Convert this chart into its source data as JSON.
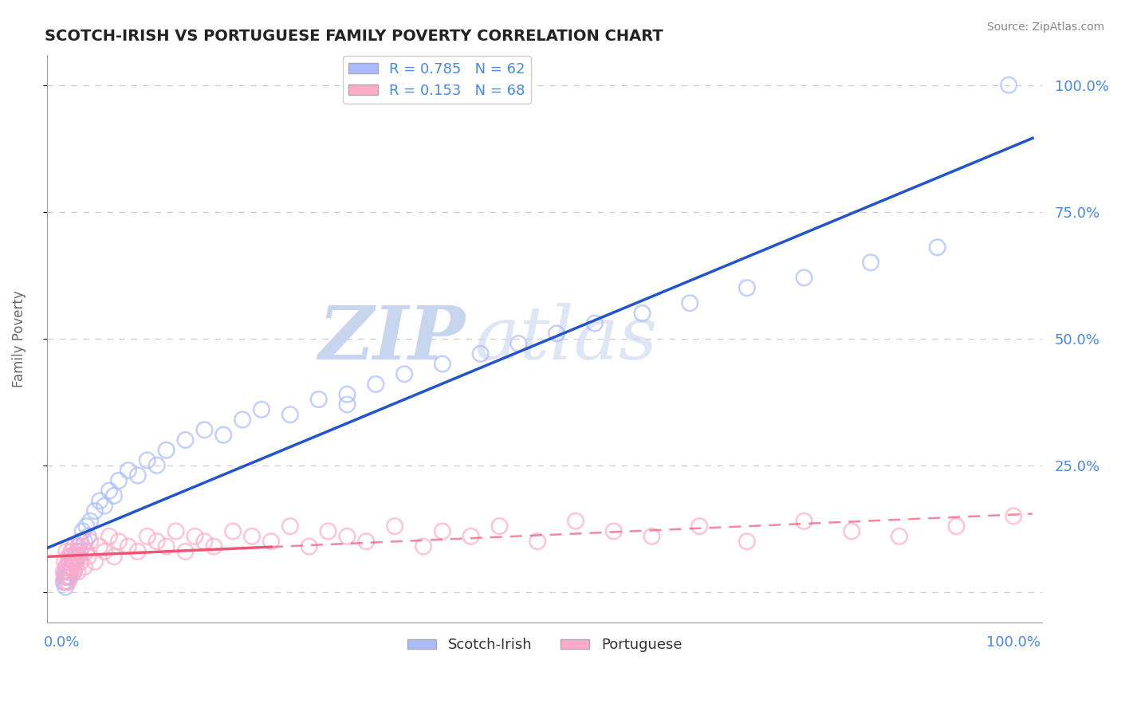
{
  "title": "SCOTCH-IRISH VS PORTUGUESE FAMILY POVERTY CORRELATION CHART",
  "source_text": "Source: ZipAtlas.com",
  "ylabel": "Family Poverty",
  "xlim": [
    -1.5,
    103.0
  ],
  "ylim": [
    -6.0,
    106.0
  ],
  "ytick_positions": [
    0,
    25,
    50,
    75,
    100
  ],
  "ytick_right_labels": [
    "",
    "25.0%",
    "50.0%",
    "75.0%",
    "100.0%"
  ],
  "xtick_positions": [
    0,
    100
  ],
  "xtick_labels": [
    "0.0%",
    "100.0%"
  ],
  "grid_color": "#cccccc",
  "watermark_text": "ZIPatlas",
  "watermark_color": "#ccd8f0",
  "scotch_irish": {
    "R": 0.785,
    "N": 62,
    "color": "#aabbff",
    "edge_color": "#7799ee",
    "line_color": "#2255cc",
    "label": "Scotch-Irish",
    "x": [
      0.2,
      0.3,
      0.4,
      0.4,
      0.5,
      0.5,
      0.6,
      0.7,
      0.8,
      0.8,
      0.9,
      1.0,
      1.0,
      1.1,
      1.2,
      1.3,
      1.4,
      1.5,
      1.6,
      1.7,
      1.8,
      1.9,
      2.0,
      2.2,
      2.4,
      2.6,
      2.8,
      3.0,
      3.5,
      4.0,
      4.5,
      5.0,
      5.5,
      6.0,
      7.0,
      8.0,
      9.0,
      10.0,
      11.0,
      13.0,
      15.0,
      17.0,
      19.0,
      21.0,
      24.0,
      27.0,
      30.0,
      30.0,
      33.0,
      36.0,
      40.0,
      44.0,
      48.0,
      52.0,
      56.0,
      61.0,
      66.0,
      72.0,
      78.0,
      85.0,
      92.0,
      99.5
    ],
    "y": [
      2,
      3,
      1,
      4,
      2,
      5,
      3,
      4,
      3,
      6,
      4,
      5,
      7,
      5,
      6,
      4,
      7,
      6,
      8,
      7,
      9,
      8,
      10,
      12,
      10,
      13,
      11,
      14,
      16,
      18,
      17,
      20,
      19,
      22,
      24,
      23,
      26,
      25,
      28,
      30,
      32,
      31,
      34,
      36,
      35,
      38,
      37,
      39,
      41,
      43,
      45,
      47,
      49,
      51,
      53,
      55,
      57,
      60,
      62,
      65,
      68,
      100
    ]
  },
  "portuguese": {
    "R": 0.153,
    "N": 68,
    "color": "#ffaac8",
    "edge_color": "#ee88aa",
    "line_color": "#ee5577",
    "label": "Portuguese",
    "x": [
      0.2,
      0.3,
      0.3,
      0.4,
      0.5,
      0.5,
      0.6,
      0.7,
      0.7,
      0.8,
      0.9,
      1.0,
      1.0,
      1.1,
      1.2,
      1.3,
      1.4,
      1.5,
      1.6,
      1.7,
      1.8,
      1.9,
      2.0,
      2.2,
      2.4,
      2.6,
      2.8,
      3.0,
      3.5,
      4.0,
      4.5,
      5.0,
      5.5,
      6.0,
      7.0,
      8.0,
      9.0,
      10.0,
      11.0,
      12.0,
      13.0,
      14.0,
      15.0,
      16.0,
      18.0,
      20.0,
      22.0,
      24.0,
      26.0,
      28.0,
      30.0,
      32.0,
      35.0,
      38.0,
      40.0,
      43.0,
      46.0,
      50.0,
      54.0,
      58.0,
      62.0,
      67.0,
      72.0,
      78.0,
      83.0,
      88.0,
      94.0,
      100.0
    ],
    "y": [
      4,
      2,
      6,
      3,
      5,
      8,
      4,
      7,
      2,
      6,
      3,
      8,
      5,
      7,
      4,
      9,
      6,
      5,
      8,
      4,
      7,
      10,
      6,
      9,
      5,
      8,
      7,
      10,
      6,
      9,
      8,
      11,
      7,
      10,
      9,
      8,
      11,
      10,
      9,
      12,
      8,
      11,
      10,
      9,
      12,
      11,
      10,
      13,
      9,
      12,
      11,
      10,
      13,
      9,
      12,
      11,
      13,
      10,
      14,
      12,
      11,
      13,
      10,
      14,
      12,
      11,
      13,
      15
    ]
  },
  "background_color": "#ffffff",
  "title_fontsize": 14,
  "axis_color": "#4488ee",
  "tick_color": "#4488ee",
  "legend_fontsize": 13
}
